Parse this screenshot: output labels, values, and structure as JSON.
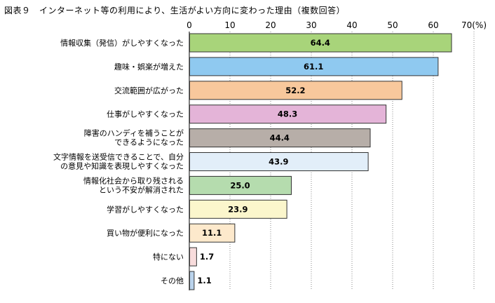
{
  "title": "図表９　インターネット等の利用により、生活がよい方向に変わった理由（複数回答）",
  "chart_data": {
    "type": "bar",
    "orientation": "horizontal",
    "xlim": [
      0,
      70
    ],
    "ticks": [
      0,
      10,
      20,
      30,
      40,
      50,
      60,
      70
    ],
    "unit_label": "(%)",
    "grid": "vertical dotted",
    "categories": [
      [
        "情報収集（発信）がしやすくなった"
      ],
      [
        "趣味・娯楽が増えた"
      ],
      [
        "交流範囲が広がった"
      ],
      [
        "仕事がしやすくなった"
      ],
      [
        "障害のハンディを補うことが",
        "できるようになった"
      ],
      [
        "文字情報を送受信できることで、自分",
        "の意見や知識を表現しやすくなった"
      ],
      [
        "情報化社会から取り残される",
        "という不安が解消された"
      ],
      [
        "学習がしやすくなった"
      ],
      [
        "買い物が便利になった"
      ],
      [
        "特にない"
      ],
      [
        "その他"
      ]
    ],
    "values": [
      64.4,
      61.1,
      52.2,
      48.3,
      44.4,
      43.9,
      25.0,
      23.9,
      11.1,
      1.7,
      1.1
    ],
    "value_labels": [
      "64.4",
      "61.1",
      "52.2",
      "48.3",
      "44.4",
      "43.9",
      "25.0",
      "23.9",
      "11.1",
      "1.7",
      "1.1"
    ],
    "colors": [
      "#a8d47a",
      "#8fc9f0",
      "#f8c89c",
      "#e4b4d8",
      "#b7aea8",
      "#e2eef9",
      "#b5dcae",
      "#fbf6cc",
      "#fde9cc",
      "#f8dcdc",
      "#bad3ec"
    ]
  }
}
